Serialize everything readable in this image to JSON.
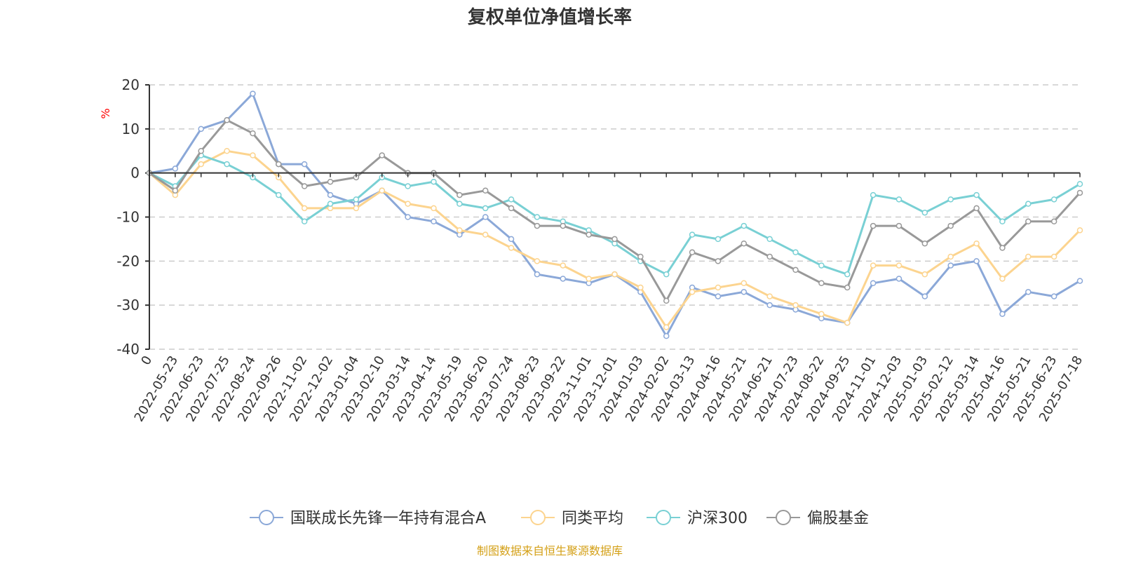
{
  "chart_data": {
    "type": "line",
    "title": "复权单位净值增长率",
    "ylabel": "%",
    "ylim": [
      -40,
      20
    ],
    "yticks": [
      20,
      10,
      0,
      -10,
      -20,
      -30,
      -40
    ],
    "grid": true,
    "legend_position": "bottom",
    "x": [
      "0",
      "2022-05-23",
      "2022-06-23",
      "2022-07-25",
      "2022-08-24",
      "2022-09-26",
      "2022-11-02",
      "2022-12-02",
      "2023-01-04",
      "2023-02-10",
      "2023-03-14",
      "2023-04-14",
      "2023-05-19",
      "2023-06-20",
      "2023-07-24",
      "2023-08-23",
      "2023-09-22",
      "2023-11-01",
      "2023-12-01",
      "2024-01-03",
      "2024-02-02",
      "2024-03-13",
      "2024-04-16",
      "2024-05-21",
      "2024-06-21",
      "2024-07-23",
      "2024-08-22",
      "2024-09-25",
      "2024-11-01",
      "2024-12-03",
      "2025-01-03",
      "2025-02-12",
      "2025-03-14",
      "2025-04-16",
      "2025-05-21",
      "2025-06-23",
      "2025-07-18"
    ],
    "series": [
      {
        "name": "国联成长先锋一年持有混合A",
        "color": "#8ba8d8",
        "values": [
          0,
          1,
          10,
          12,
          18,
          2,
          2,
          -5,
          -7,
          -4,
          -10,
          -11,
          -14,
          -10,
          -15,
          -23,
          -24,
          -25,
          -23,
          -27,
          -37,
          -26,
          -28,
          -27,
          -30,
          -31,
          -33,
          -34,
          -25,
          -24,
          -28,
          -21,
          -20,
          -32,
          -27,
          -28,
          -24.5
        ]
      },
      {
        "name": "同类平均",
        "color": "#fcd48f",
        "values": [
          0,
          -5,
          2,
          5,
          4,
          -1,
          -8,
          -8,
          -8,
          -4,
          -7,
          -8,
          -13,
          -14,
          -17,
          -20,
          -21,
          -24,
          -23,
          -26,
          -35,
          -27,
          -26,
          -25,
          -28,
          -30,
          -32,
          -34,
          -21,
          -21,
          -23,
          -19,
          -16,
          -24,
          -19,
          -19,
          -13
        ]
      },
      {
        "name": "沪深300",
        "color": "#79d0d4",
        "values": [
          0,
          -3,
          4,
          2,
          -1,
          -5,
          -11,
          -7,
          -6,
          -1,
          -3,
          -2,
          -7,
          -8,
          -6,
          -10,
          -11,
          -13,
          -16,
          -20,
          -23,
          -14,
          -15,
          -12,
          -15,
          -18,
          -21,
          -23,
          -5,
          -6,
          -9,
          -6,
          -5,
          -11,
          -7,
          -6,
          -2.5
        ]
      },
      {
        "name": "偏股基金",
        "color": "#999999",
        "values": [
          0,
          -4,
          5,
          12,
          9,
          2,
          -3,
          -2,
          -1,
          4,
          0,
          0,
          -5,
          -4,
          -8,
          -12,
          -12,
          -14,
          -15,
          -19,
          -29,
          -18,
          -20,
          -16,
          -19,
          -22,
          -25,
          -26,
          -12,
          -12,
          -16,
          -12,
          -8,
          -17,
          -11,
          -11,
          -4.5
        ]
      }
    ]
  },
  "source": "制图数据来自恒生聚源数据库"
}
